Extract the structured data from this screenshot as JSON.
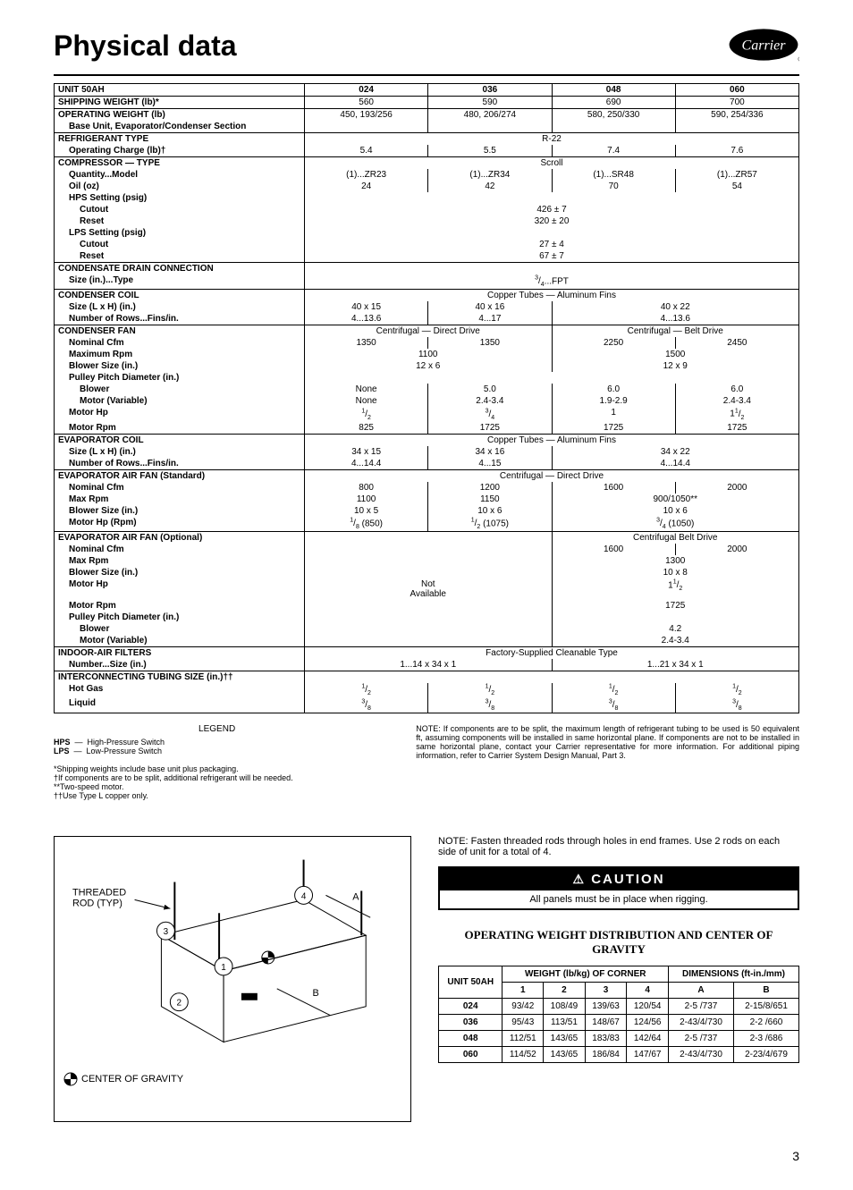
{
  "title": "Physical data",
  "logo_text": "Carrier",
  "page_number": "3",
  "columns": [
    "024",
    "036",
    "048",
    "060"
  ],
  "rows": {
    "unit_label": "UNIT 50AH",
    "shipping_weight": {
      "label": "SHIPPING WEIGHT (lb)*",
      "vals": [
        "560",
        "590",
        "690",
        "700"
      ]
    },
    "operating_weight": {
      "label": "OPERATING WEIGHT (lb)",
      "sub": "Base Unit, Evaporator/Condenser Section",
      "vals": [
        "450, 193/256",
        "480, 206/274",
        "580, 250/330",
        "590, 254/336"
      ]
    },
    "refrigerant_type": {
      "label": "REFRIGERANT TYPE",
      "span": "R-22"
    },
    "operating_charge": {
      "label": "Operating Charge (lb)†",
      "vals": [
        "5.4",
        "5.5",
        "7.4",
        "7.6"
      ]
    },
    "compressor_type": {
      "label": "COMPRESSOR — TYPE",
      "span": "Scroll"
    },
    "quantity_model": {
      "label": "Quantity...Model",
      "vals": [
        "(1)...ZR23",
        "(1)...ZR34",
        "(1)...SR48",
        "(1)...ZR57"
      ]
    },
    "oil": {
      "label": "Oil (oz)",
      "vals": [
        "24",
        "42",
        "70",
        "54"
      ]
    },
    "hps_setting": {
      "label": "HPS Setting (psig)"
    },
    "hps_cutout": {
      "label": "Cutout",
      "span": "426 ±  7"
    },
    "hps_reset": {
      "label": "Reset",
      "span": "320 ± 20"
    },
    "lps_setting": {
      "label": "LPS Setting (psig)"
    },
    "lps_cutout": {
      "label": "Cutout",
      "span": "27 ± 4"
    },
    "lps_reset": {
      "label": "Reset",
      "span": "67 ± 7"
    },
    "condensate": {
      "label": "CONDENSATE DRAIN CONNECTION"
    },
    "condensate_size": {
      "label": "Size (in.)...Type",
      "span": "3/4...FPT"
    },
    "cond_coil": {
      "label": "CONDENSER COIL",
      "span": "Copper Tubes — Aluminum Fins"
    },
    "cond_coil_size": {
      "label": "Size (L x H) (in.)",
      "vals": [
        "40 x 15",
        "40 x 16",
        "40 x 22",
        "40 x 22"
      ],
      "split34": true
    },
    "cond_coil_rows": {
      "label": "Number of Rows...Fins/in.",
      "vals": [
        "4...13.6",
        "4...17",
        "4...13.6",
        "4...13.6"
      ],
      "split34": true
    },
    "cond_fan": {
      "label": "CONDENSER FAN",
      "vals2": [
        "Centrifugal — Direct Drive",
        "Centrifugal — Belt Drive"
      ]
    },
    "cf_nominal": {
      "label": "Nominal Cfm",
      "vals": [
        "1350",
        "1350",
        "2250",
        "2450"
      ]
    },
    "cf_maxrpm": {
      "label": "Maximum Rpm",
      "vals2": [
        "1100",
        "1500"
      ]
    },
    "cf_blower": {
      "label": "Blower Size (in.)",
      "vals2": [
        "12 x 6",
        "12 x 9"
      ]
    },
    "cf_pulley": {
      "label": "Pulley Pitch Diameter (in.)"
    },
    "cf_pulley_blower": {
      "label": "Blower",
      "vals": [
        "None",
        "5.0",
        "6.0",
        "6.0"
      ]
    },
    "cf_pulley_motor": {
      "label": "Motor (Variable)",
      "vals": [
        "None",
        "2.4-3.4",
        "1.9-2.9",
        "2.4-3.4"
      ]
    },
    "cf_motorhp": {
      "label": "Motor Hp",
      "vals": [
        "1/2",
        "3/4",
        "1",
        "11/2"
      ]
    },
    "cf_motorrpm": {
      "label": "Motor Rpm",
      "vals": [
        "825",
        "1725",
        "1725",
        "1725"
      ]
    },
    "evap_coil": {
      "label": "EVAPORATOR COIL",
      "span": "Copper Tubes — Aluminum Fins"
    },
    "evap_size": {
      "label": "Size (L x H) (in.)",
      "vals": [
        "34 x 15",
        "34 x 16",
        "34 x 22",
        "34 x 22"
      ],
      "split34": true
    },
    "evap_rows": {
      "label": "Number of Rows...Fins/in.",
      "vals": [
        "4...14.4",
        "4...15",
        "4...14.4",
        "4...14.4"
      ],
      "split34": true
    },
    "evap_fan_std": {
      "label": "EVAPORATOR AIR FAN (Standard)",
      "span": "Centrifugal — Direct Drive"
    },
    "efs_nominal": {
      "label": "Nominal Cfm",
      "vals": [
        "800",
        "1200",
        "1600",
        "2000"
      ]
    },
    "efs_maxrpm": {
      "label": "Max Rpm",
      "vals": [
        "1100",
        "1150",
        "900/1050**",
        "900/1050**"
      ],
      "split34": true
    },
    "efs_blower": {
      "label": "Blower Size (in.)",
      "vals": [
        "10 x 5",
        "10 x 6",
        "10 x 6",
        "10 x 6"
      ],
      "split34": true
    },
    "efs_motorhp": {
      "label": "Motor Hp (Rpm)",
      "vals": [
        "1/8 (850)",
        "1/2 (1075)",
        "3/4 (1050)",
        "3/4 (1050)"
      ],
      "split34": true
    },
    "evap_fan_opt": {
      "label": "EVAPORATOR AIR FAN (Optional)",
      "span_right": "Centrifugal Belt Drive"
    },
    "efo_nominal": {
      "label": "Nominal Cfm",
      "vals34": [
        "1600",
        "2000"
      ]
    },
    "efo_maxrpm": {
      "label": "Max Rpm",
      "span34": "1300"
    },
    "efo_blower": {
      "label": "Blower Size (in.)",
      "span34": "10 x 8",
      "na": "Not"
    },
    "efo_motorhp": {
      "label": "Motor Hp",
      "span34": "11/2",
      "na": "Available"
    },
    "efo_motorrpm": {
      "label": "Motor Rpm",
      "span34": "1725"
    },
    "efo_pulley": {
      "label": "Pulley Pitch Diameter (in.)"
    },
    "efo_pulley_blower": {
      "label": "Blower",
      "span34": "4.2"
    },
    "efo_pulley_motor": {
      "label": "Motor (Variable)",
      "span34": "2.4-3.4"
    },
    "filters": {
      "label": "INDOOR-AIR FILTERS",
      "span": "Factory-Supplied Cleanable Type"
    },
    "filters_num": {
      "label": "Number...Size (in.)",
      "vals2": [
        "1...14 x 34 x 1",
        "1...21 x 34 x 1"
      ]
    },
    "tubing": {
      "label": "INTERCONNECTING TUBING SIZE (in.)††"
    },
    "hot_gas": {
      "label": "Hot Gas",
      "vals": [
        "1/2",
        "1/2",
        "1/2",
        "1/2"
      ]
    },
    "liquid": {
      "label": "Liquid",
      "vals": [
        "3/8",
        "3/8",
        "3/8",
        "3/8"
      ]
    }
  },
  "legend": {
    "title": "LEGEND",
    "hps": "HPS",
    "hps_def": "High-Pressure Switch",
    "lps": "LPS",
    "lps_def": "Low-Pressure Switch",
    "note1": "*Shipping weights include base unit plus packaging.",
    "note2": "†If components are to be split, additional refrigerant will be needed.",
    "note3": "**Two-speed motor.",
    "note4": "††Use Type L copper only.",
    "right_note": "NOTE: If components are to be split, the maximum length of refrigerant tubing to be used is 50 equivalent ft, assuming components will be installed in same horizontal plane. If components are not to be installed in same horizontal plane, contact your Carrier representative for more information. For additional piping information, refer to Carrier System Design Manual, Part 3."
  },
  "lower": {
    "diagram_labels": {
      "rod": "THREADED\nROD (TYP)",
      "cog": "CENTER OF GRAVITY"
    },
    "note": "NOTE: Fasten threaded rods through holes in end frames. Use 2 rods on each side of unit for a total of 4.",
    "caution_title": "CAUTION",
    "caution_body": "All panels must be in place when rigging.",
    "owd_title": "OPERATING WEIGHT DISTRIBUTION AND CENTER OF GRAVITY",
    "cog_table": {
      "unit_header": "UNIT 50AH",
      "weight_header": "WEIGHT (lb/kg) OF CORNER",
      "dim_header": "DIMENSIONS (ft-in./mm)",
      "cols": [
        "1",
        "2",
        "3",
        "4",
        "A",
        "B"
      ],
      "rows": [
        {
          "unit": "024",
          "vals": [
            "93/42",
            "108/49",
            "139/63",
            "120/54",
            "2-5  /737",
            "2-15/8/651"
          ]
        },
        {
          "unit": "036",
          "vals": [
            "95/43",
            "113/51",
            "148/67",
            "124/56",
            "2-43/4/730",
            "2-2  /660"
          ]
        },
        {
          "unit": "048",
          "vals": [
            "112/51",
            "143/65",
            "183/83",
            "142/64",
            "2-5  /737",
            "2-3  /686"
          ]
        },
        {
          "unit": "060",
          "vals": [
            "114/52",
            "143/65",
            "186/84",
            "147/67",
            "2-43/4/730",
            "2-23/4/679"
          ]
        }
      ]
    }
  }
}
